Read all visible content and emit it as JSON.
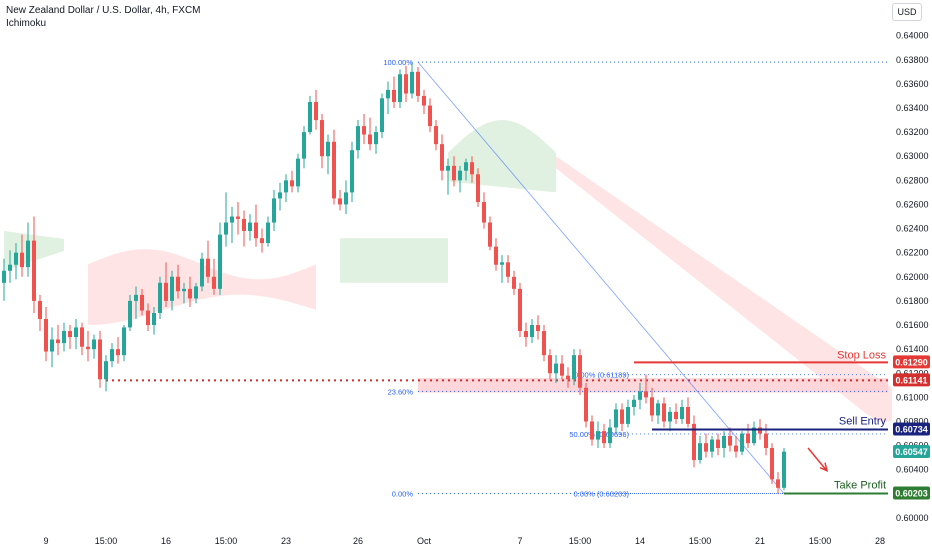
{
  "header": {
    "title": "New Zealand Dollar / U.S. Dollar, 4h, FXCM",
    "indicator": "Ichimoku",
    "currency": "USD"
  },
  "colors": {
    "bull": "#26a69a",
    "bear": "#ef5350",
    "cloud_bull": "#c8e6c9",
    "cloud_bear": "#ffcdd2",
    "fib": "#2962ff",
    "stop_loss": "#e53935",
    "entry": "#1a237e",
    "take_profit": "#2e7d32",
    "resistance": "#d32f2f"
  },
  "chart_data": {
    "type": "candlestick",
    "y_axis": {
      "range": [
        0.599,
        0.6408
      ],
      "ticks": [
        0.64,
        0.638,
        0.636,
        0.634,
        0.632,
        0.63,
        0.628,
        0.626,
        0.624,
        0.622,
        0.62,
        0.618,
        0.616,
        0.614,
        0.612,
        0.61,
        0.608,
        0.606,
        0.604,
        0.6
      ],
      "tick_labels": [
        "0.64000",
        "0.63800",
        "0.63600",
        "0.63400",
        "0.63200",
        "0.63000",
        "0.62800",
        "0.62600",
        "0.62400",
        "0.62200",
        "0.62000",
        "0.61800",
        "0.61600",
        "0.61400",
        "0.61200",
        "0.61000",
        "0.60800",
        "0.60600",
        "0.60400",
        "0.60000"
      ]
    },
    "x_axis": {
      "ticks": [
        {
          "label": "9",
          "bar": 7
        },
        {
          "label": "15:00",
          "bar": 17
        },
        {
          "label": "16",
          "bar": 27
        },
        {
          "label": "15:00",
          "bar": 37
        },
        {
          "label": "23",
          "bar": 47
        },
        {
          "label": "26",
          "bar": 59
        },
        {
          "label": "Oct",
          "bar": 70
        },
        {
          "label": "7",
          "bar": 86
        },
        {
          "label": "15:00",
          "bar": 96
        },
        {
          "label": "14",
          "bar": 106
        },
        {
          "label": "15:00",
          "bar": 116
        },
        {
          "label": "21",
          "bar": 126
        },
        {
          "label": "15:00",
          "bar": 136
        },
        {
          "label": "28",
          "bar": 146
        }
      ]
    },
    "candles": [
      {
        "o": 0.6195,
        "h": 0.6215,
        "l": 0.618,
        "c": 0.6205
      },
      {
        "o": 0.6205,
        "h": 0.6222,
        "l": 0.6195,
        "c": 0.621
      },
      {
        "o": 0.621,
        "h": 0.6228,
        "l": 0.6198,
        "c": 0.622
      },
      {
        "o": 0.622,
        "h": 0.6235,
        "l": 0.62,
        "c": 0.6208
      },
      {
        "o": 0.6208,
        "h": 0.6245,
        "l": 0.62,
        "c": 0.623
      },
      {
        "o": 0.623,
        "h": 0.625,
        "l": 0.617,
        "c": 0.618
      },
      {
        "o": 0.618,
        "h": 0.6185,
        "l": 0.6155,
        "c": 0.6165
      },
      {
        "o": 0.6165,
        "h": 0.6175,
        "l": 0.613,
        "c": 0.6138
      },
      {
        "o": 0.6138,
        "h": 0.6158,
        "l": 0.6125,
        "c": 0.6148
      },
      {
        "o": 0.6148,
        "h": 0.616,
        "l": 0.6135,
        "c": 0.6145
      },
      {
        "o": 0.6145,
        "h": 0.6162,
        "l": 0.6138,
        "c": 0.6155
      },
      {
        "o": 0.6155,
        "h": 0.616,
        "l": 0.614,
        "c": 0.615
      },
      {
        "o": 0.615,
        "h": 0.6165,
        "l": 0.614,
        "c": 0.6158
      },
      {
        "o": 0.6158,
        "h": 0.6162,
        "l": 0.6135,
        "c": 0.6142
      },
      {
        "o": 0.6142,
        "h": 0.6155,
        "l": 0.613,
        "c": 0.614
      },
      {
        "o": 0.614,
        "h": 0.6152,
        "l": 0.6132,
        "c": 0.6148
      },
      {
        "o": 0.6148,
        "h": 0.6155,
        "l": 0.6108,
        "c": 0.6115
      },
      {
        "o": 0.6115,
        "h": 0.6135,
        "l": 0.6105,
        "c": 0.613
      },
      {
        "o": 0.613,
        "h": 0.6145,
        "l": 0.6125,
        "c": 0.614
      },
      {
        "o": 0.614,
        "h": 0.615,
        "l": 0.6128,
        "c": 0.6135
      },
      {
        "o": 0.6135,
        "h": 0.616,
        "l": 0.613,
        "c": 0.6158
      },
      {
        "o": 0.6158,
        "h": 0.6185,
        "l": 0.6155,
        "c": 0.618
      },
      {
        "o": 0.618,
        "h": 0.6192,
        "l": 0.6165,
        "c": 0.6185
      },
      {
        "o": 0.6185,
        "h": 0.619,
        "l": 0.6168,
        "c": 0.6172
      },
      {
        "o": 0.6172,
        "h": 0.6178,
        "l": 0.6155,
        "c": 0.616
      },
      {
        "o": 0.616,
        "h": 0.6175,
        "l": 0.6152,
        "c": 0.617
      },
      {
        "o": 0.617,
        "h": 0.62,
        "l": 0.6165,
        "c": 0.6195
      },
      {
        "o": 0.6195,
        "h": 0.6212,
        "l": 0.6175,
        "c": 0.618
      },
      {
        "o": 0.618,
        "h": 0.6205,
        "l": 0.6172,
        "c": 0.62
      },
      {
        "o": 0.62,
        "h": 0.621,
        "l": 0.6182,
        "c": 0.6188
      },
      {
        "o": 0.6188,
        "h": 0.6195,
        "l": 0.6178,
        "c": 0.619
      },
      {
        "o": 0.619,
        "h": 0.62,
        "l": 0.6175,
        "c": 0.6182
      },
      {
        "o": 0.6182,
        "h": 0.6195,
        "l": 0.6178,
        "c": 0.6192
      },
      {
        "o": 0.6192,
        "h": 0.622,
        "l": 0.6188,
        "c": 0.6215
      },
      {
        "o": 0.6215,
        "h": 0.623,
        "l": 0.6195,
        "c": 0.62
      },
      {
        "o": 0.62,
        "h": 0.6215,
        "l": 0.6185,
        "c": 0.619
      },
      {
        "o": 0.619,
        "h": 0.6245,
        "l": 0.6185,
        "c": 0.6235
      },
      {
        "o": 0.6235,
        "h": 0.627,
        "l": 0.6225,
        "c": 0.6245
      },
      {
        "o": 0.6245,
        "h": 0.6258,
        "l": 0.6228,
        "c": 0.625
      },
      {
        "o": 0.625,
        "h": 0.6262,
        "l": 0.6235,
        "c": 0.6248
      },
      {
        "o": 0.6248,
        "h": 0.6255,
        "l": 0.6225,
        "c": 0.6238
      },
      {
        "o": 0.6238,
        "h": 0.6252,
        "l": 0.623,
        "c": 0.6245
      },
      {
        "o": 0.6245,
        "h": 0.626,
        "l": 0.6225,
        "c": 0.6232
      },
      {
        "o": 0.6232,
        "h": 0.624,
        "l": 0.622,
        "c": 0.6228
      },
      {
        "o": 0.6228,
        "h": 0.625,
        "l": 0.6225,
        "c": 0.6245
      },
      {
        "o": 0.6245,
        "h": 0.6272,
        "l": 0.6238,
        "c": 0.6265
      },
      {
        "o": 0.6265,
        "h": 0.6278,
        "l": 0.6255,
        "c": 0.627
      },
      {
        "o": 0.627,
        "h": 0.6285,
        "l": 0.6262,
        "c": 0.628
      },
      {
        "o": 0.628,
        "h": 0.6288,
        "l": 0.627,
        "c": 0.6275
      },
      {
        "o": 0.6275,
        "h": 0.6302,
        "l": 0.627,
        "c": 0.6298
      },
      {
        "o": 0.6298,
        "h": 0.6325,
        "l": 0.629,
        "c": 0.632
      },
      {
        "o": 0.632,
        "h": 0.635,
        "l": 0.6318,
        "c": 0.6345
      },
      {
        "o": 0.6345,
        "h": 0.6355,
        "l": 0.6322,
        "c": 0.633
      },
      {
        "o": 0.633,
        "h": 0.6335,
        "l": 0.629,
        "c": 0.63
      },
      {
        "o": 0.63,
        "h": 0.6318,
        "l": 0.6285,
        "c": 0.6312
      },
      {
        "o": 0.6312,
        "h": 0.6322,
        "l": 0.626,
        "c": 0.6265
      },
      {
        "o": 0.6265,
        "h": 0.6272,
        "l": 0.6255,
        "c": 0.626
      },
      {
        "o": 0.626,
        "h": 0.628,
        "l": 0.6252,
        "c": 0.627
      },
      {
        "o": 0.627,
        "h": 0.6312,
        "l": 0.6262,
        "c": 0.6305
      },
      {
        "o": 0.6305,
        "h": 0.633,
        "l": 0.6298,
        "c": 0.6325
      },
      {
        "o": 0.6325,
        "h": 0.6335,
        "l": 0.631,
        "c": 0.6318
      },
      {
        "o": 0.6318,
        "h": 0.6332,
        "l": 0.6305,
        "c": 0.631
      },
      {
        "o": 0.631,
        "h": 0.6325,
        "l": 0.6302,
        "c": 0.632
      },
      {
        "o": 0.632,
        "h": 0.6352,
        "l": 0.6315,
        "c": 0.6348
      },
      {
        "o": 0.6348,
        "h": 0.6362,
        "l": 0.6335,
        "c": 0.6355
      },
      {
        "o": 0.6355,
        "h": 0.6366,
        "l": 0.634,
        "c": 0.6345
      },
      {
        "o": 0.6345,
        "h": 0.6372,
        "l": 0.634,
        "c": 0.6368
      },
      {
        "o": 0.6368,
        "h": 0.6375,
        "l": 0.6345,
        "c": 0.6352
      },
      {
        "o": 0.6352,
        "h": 0.6378,
        "l": 0.6348,
        "c": 0.637
      },
      {
        "o": 0.637,
        "h": 0.6374,
        "l": 0.6345,
        "c": 0.635
      },
      {
        "o": 0.635,
        "h": 0.6355,
        "l": 0.6335,
        "c": 0.6342
      },
      {
        "o": 0.6342,
        "h": 0.6348,
        "l": 0.632,
        "c": 0.6325
      },
      {
        "o": 0.6325,
        "h": 0.633,
        "l": 0.6305,
        "c": 0.631
      },
      {
        "o": 0.631,
        "h": 0.6318,
        "l": 0.628,
        "c": 0.6288
      },
      {
        "o": 0.6288,
        "h": 0.6298,
        "l": 0.6268,
        "c": 0.6292
      },
      {
        "o": 0.6292,
        "h": 0.63,
        "l": 0.6275,
        "c": 0.628
      },
      {
        "o": 0.628,
        "h": 0.6292,
        "l": 0.627,
        "c": 0.6288
      },
      {
        "o": 0.6288,
        "h": 0.6298,
        "l": 0.628,
        "c": 0.6295
      },
      {
        "o": 0.6295,
        "h": 0.63,
        "l": 0.6278,
        "c": 0.6285
      },
      {
        "o": 0.6285,
        "h": 0.629,
        "l": 0.6258,
        "c": 0.6262
      },
      {
        "o": 0.6262,
        "h": 0.627,
        "l": 0.624,
        "c": 0.6245
      },
      {
        "o": 0.6245,
        "h": 0.625,
        "l": 0.6222,
        "c": 0.6225
      },
      {
        "o": 0.6225,
        "h": 0.6232,
        "l": 0.6205,
        "c": 0.621
      },
      {
        "o": 0.621,
        "h": 0.6218,
        "l": 0.6195,
        "c": 0.6212
      },
      {
        "o": 0.6212,
        "h": 0.6218,
        "l": 0.6195,
        "c": 0.62
      },
      {
        "o": 0.62,
        "h": 0.6205,
        "l": 0.6185,
        "c": 0.619
      },
      {
        "o": 0.619,
        "h": 0.6195,
        "l": 0.615,
        "c": 0.6155
      },
      {
        "o": 0.6155,
        "h": 0.6162,
        "l": 0.6142,
        "c": 0.615
      },
      {
        "o": 0.615,
        "h": 0.6165,
        "l": 0.6145,
        "c": 0.616
      },
      {
        "o": 0.616,
        "h": 0.6168,
        "l": 0.6148,
        "c": 0.6155
      },
      {
        "o": 0.6155,
        "h": 0.616,
        "l": 0.613,
        "c": 0.6135
      },
      {
        "o": 0.6135,
        "h": 0.614,
        "l": 0.6115,
        "c": 0.612
      },
      {
        "o": 0.612,
        "h": 0.6135,
        "l": 0.6112,
        "c": 0.6128
      },
      {
        "o": 0.6128,
        "h": 0.6135,
        "l": 0.6115,
        "c": 0.6118
      },
      {
        "o": 0.6118,
        "h": 0.6125,
        "l": 0.6108,
        "c": 0.6115
      },
      {
        "o": 0.6115,
        "h": 0.614,
        "l": 0.611,
        "c": 0.6135
      },
      {
        "o": 0.6135,
        "h": 0.614,
        "l": 0.6102,
        "c": 0.6108
      },
      {
        "o": 0.6108,
        "h": 0.6112,
        "l": 0.6075,
        "c": 0.608
      },
      {
        "o": 0.608,
        "h": 0.6085,
        "l": 0.606,
        "c": 0.6065
      },
      {
        "o": 0.6065,
        "h": 0.608,
        "l": 0.6058,
        "c": 0.6072
      },
      {
        "o": 0.6072,
        "h": 0.6078,
        "l": 0.6058,
        "c": 0.6062
      },
      {
        "o": 0.6062,
        "h": 0.6082,
        "l": 0.6058,
        "c": 0.6075
      },
      {
        "o": 0.6075,
        "h": 0.6095,
        "l": 0.607,
        "c": 0.609
      },
      {
        "o": 0.609,
        "h": 0.6095,
        "l": 0.6072,
        "c": 0.6078
      },
      {
        "o": 0.6078,
        "h": 0.6098,
        "l": 0.6075,
        "c": 0.6092
      },
      {
        "o": 0.6092,
        "h": 0.6102,
        "l": 0.6085,
        "c": 0.6098
      },
      {
        "o": 0.6098,
        "h": 0.6112,
        "l": 0.609,
        "c": 0.6105
      },
      {
        "o": 0.6105,
        "h": 0.6119,
        "l": 0.6095,
        "c": 0.61
      },
      {
        "o": 0.61,
        "h": 0.6108,
        "l": 0.608,
        "c": 0.6085
      },
      {
        "o": 0.6085,
        "h": 0.6098,
        "l": 0.6078,
        "c": 0.6095
      },
      {
        "o": 0.6095,
        "h": 0.61,
        "l": 0.6075,
        "c": 0.608
      },
      {
        "o": 0.608,
        "h": 0.6092,
        "l": 0.6072,
        "c": 0.6088
      },
      {
        "o": 0.6088,
        "h": 0.6095,
        "l": 0.6078,
        "c": 0.6082
      },
      {
        "o": 0.6082,
        "h": 0.6098,
        "l": 0.6078,
        "c": 0.6092
      },
      {
        "o": 0.6092,
        "h": 0.61,
        "l": 0.6075,
        "c": 0.6078
      },
      {
        "o": 0.6078,
        "h": 0.6085,
        "l": 0.6042,
        "c": 0.6048
      },
      {
        "o": 0.6048,
        "h": 0.6068,
        "l": 0.6045,
        "c": 0.6062
      },
      {
        "o": 0.6062,
        "h": 0.607,
        "l": 0.605,
        "c": 0.6055
      },
      {
        "o": 0.6055,
        "h": 0.6068,
        "l": 0.605,
        "c": 0.6065
      },
      {
        "o": 0.6065,
        "h": 0.607,
        "l": 0.6052,
        "c": 0.6058
      },
      {
        "o": 0.6058,
        "h": 0.6072,
        "l": 0.605,
        "c": 0.6068
      },
      {
        "o": 0.6068,
        "h": 0.6075,
        "l": 0.6055,
        "c": 0.606
      },
      {
        "o": 0.606,
        "h": 0.6068,
        "l": 0.605,
        "c": 0.6055
      },
      {
        "o": 0.6055,
        "h": 0.6072,
        "l": 0.6052,
        "c": 0.607
      },
      {
        "o": 0.607,
        "h": 0.6078,
        "l": 0.6058,
        "c": 0.6062
      },
      {
        "o": 0.6062,
        "h": 0.608,
        "l": 0.606,
        "c": 0.6075
      },
      {
        "o": 0.6075,
        "h": 0.6082,
        "l": 0.6065,
        "c": 0.607
      },
      {
        "o": 0.607,
        "h": 0.6078,
        "l": 0.6052,
        "c": 0.6058
      },
      {
        "o": 0.6058,
        "h": 0.6062,
        "l": 0.6028,
        "c": 0.6032
      },
      {
        "o": 0.6032,
        "h": 0.6038,
        "l": 0.602,
        "c": 0.6025
      },
      {
        "o": 0.6025,
        "h": 0.6058,
        "l": 0.6023,
        "c": 0.6055
      }
    ],
    "cloud": [
      {
        "x0": 0,
        "x1": 10,
        "top": 0.6238,
        "bottom": 0.6205,
        "kind": "bull",
        "shape": "fade_right"
      },
      {
        "x0": 14,
        "x1": 52,
        "top": 0.6223,
        "bottom": 0.616,
        "kind": "bear",
        "shape": "wave"
      },
      {
        "x0": 56,
        "x1": 74,
        "top": 0.6232,
        "bottom": 0.6195,
        "kind": "bull",
        "shape": "flat"
      },
      {
        "x0": 74,
        "x1": 92,
        "top": 0.633,
        "bottom": 0.627,
        "kind": "bull",
        "shape": "hump"
      },
      {
        "x0": 92,
        "x1": 148,
        "top": 0.63,
        "bottom": 0.608,
        "kind": "bear",
        "shape": "slope"
      }
    ],
    "annotations": {
      "swing_high": {
        "bar": 69,
        "price": 0.6378
      },
      "swing_low": {
        "bar": 130,
        "price": 0.60203
      },
      "fib_levels": [
        {
          "label": "100.00%",
          "price": 0.6378,
          "bar0": 69
        },
        {
          "label": "23.60%",
          "price": 0.6105,
          "bar0": 69
        },
        {
          "label": "0.00%",
          "price": 0.60203,
          "bar0": 69
        }
      ],
      "fib_levels_2": [
        {
          "label": "0.00% (0.61189)",
          "price": 0.61189
        },
        {
          "label": "50.00% (0.60696)",
          "price": 0.60696
        },
        {
          "label": "0.00% (0.60203)",
          "price": 0.60203
        }
      ],
      "resistance_zone": {
        "top": 0.6116,
        "bottom": 0.6104
      },
      "resistance_line": {
        "price": 0.61141,
        "bar0": 17
      },
      "stop_loss": {
        "label": "Stop Loss",
        "price": 0.6129,
        "price_label": "0.61290"
      },
      "resistance_tag": {
        "price": 0.61141,
        "price_label": "0.61141"
      },
      "sell_entry": {
        "label": "Sell Entry",
        "price": 0.60734,
        "price_label": "0.60734"
      },
      "current_price": {
        "price": 0.60547,
        "price_label": "0.60547"
      },
      "take_profit": {
        "label": "Take Profit",
        "price": 0.60203,
        "price_label": "0.60203"
      },
      "arrow": {
        "from": {
          "bar": 134,
          "price": 0.6058
        },
        "to": {
          "bar": 137,
          "price": 0.604
        }
      }
    }
  }
}
